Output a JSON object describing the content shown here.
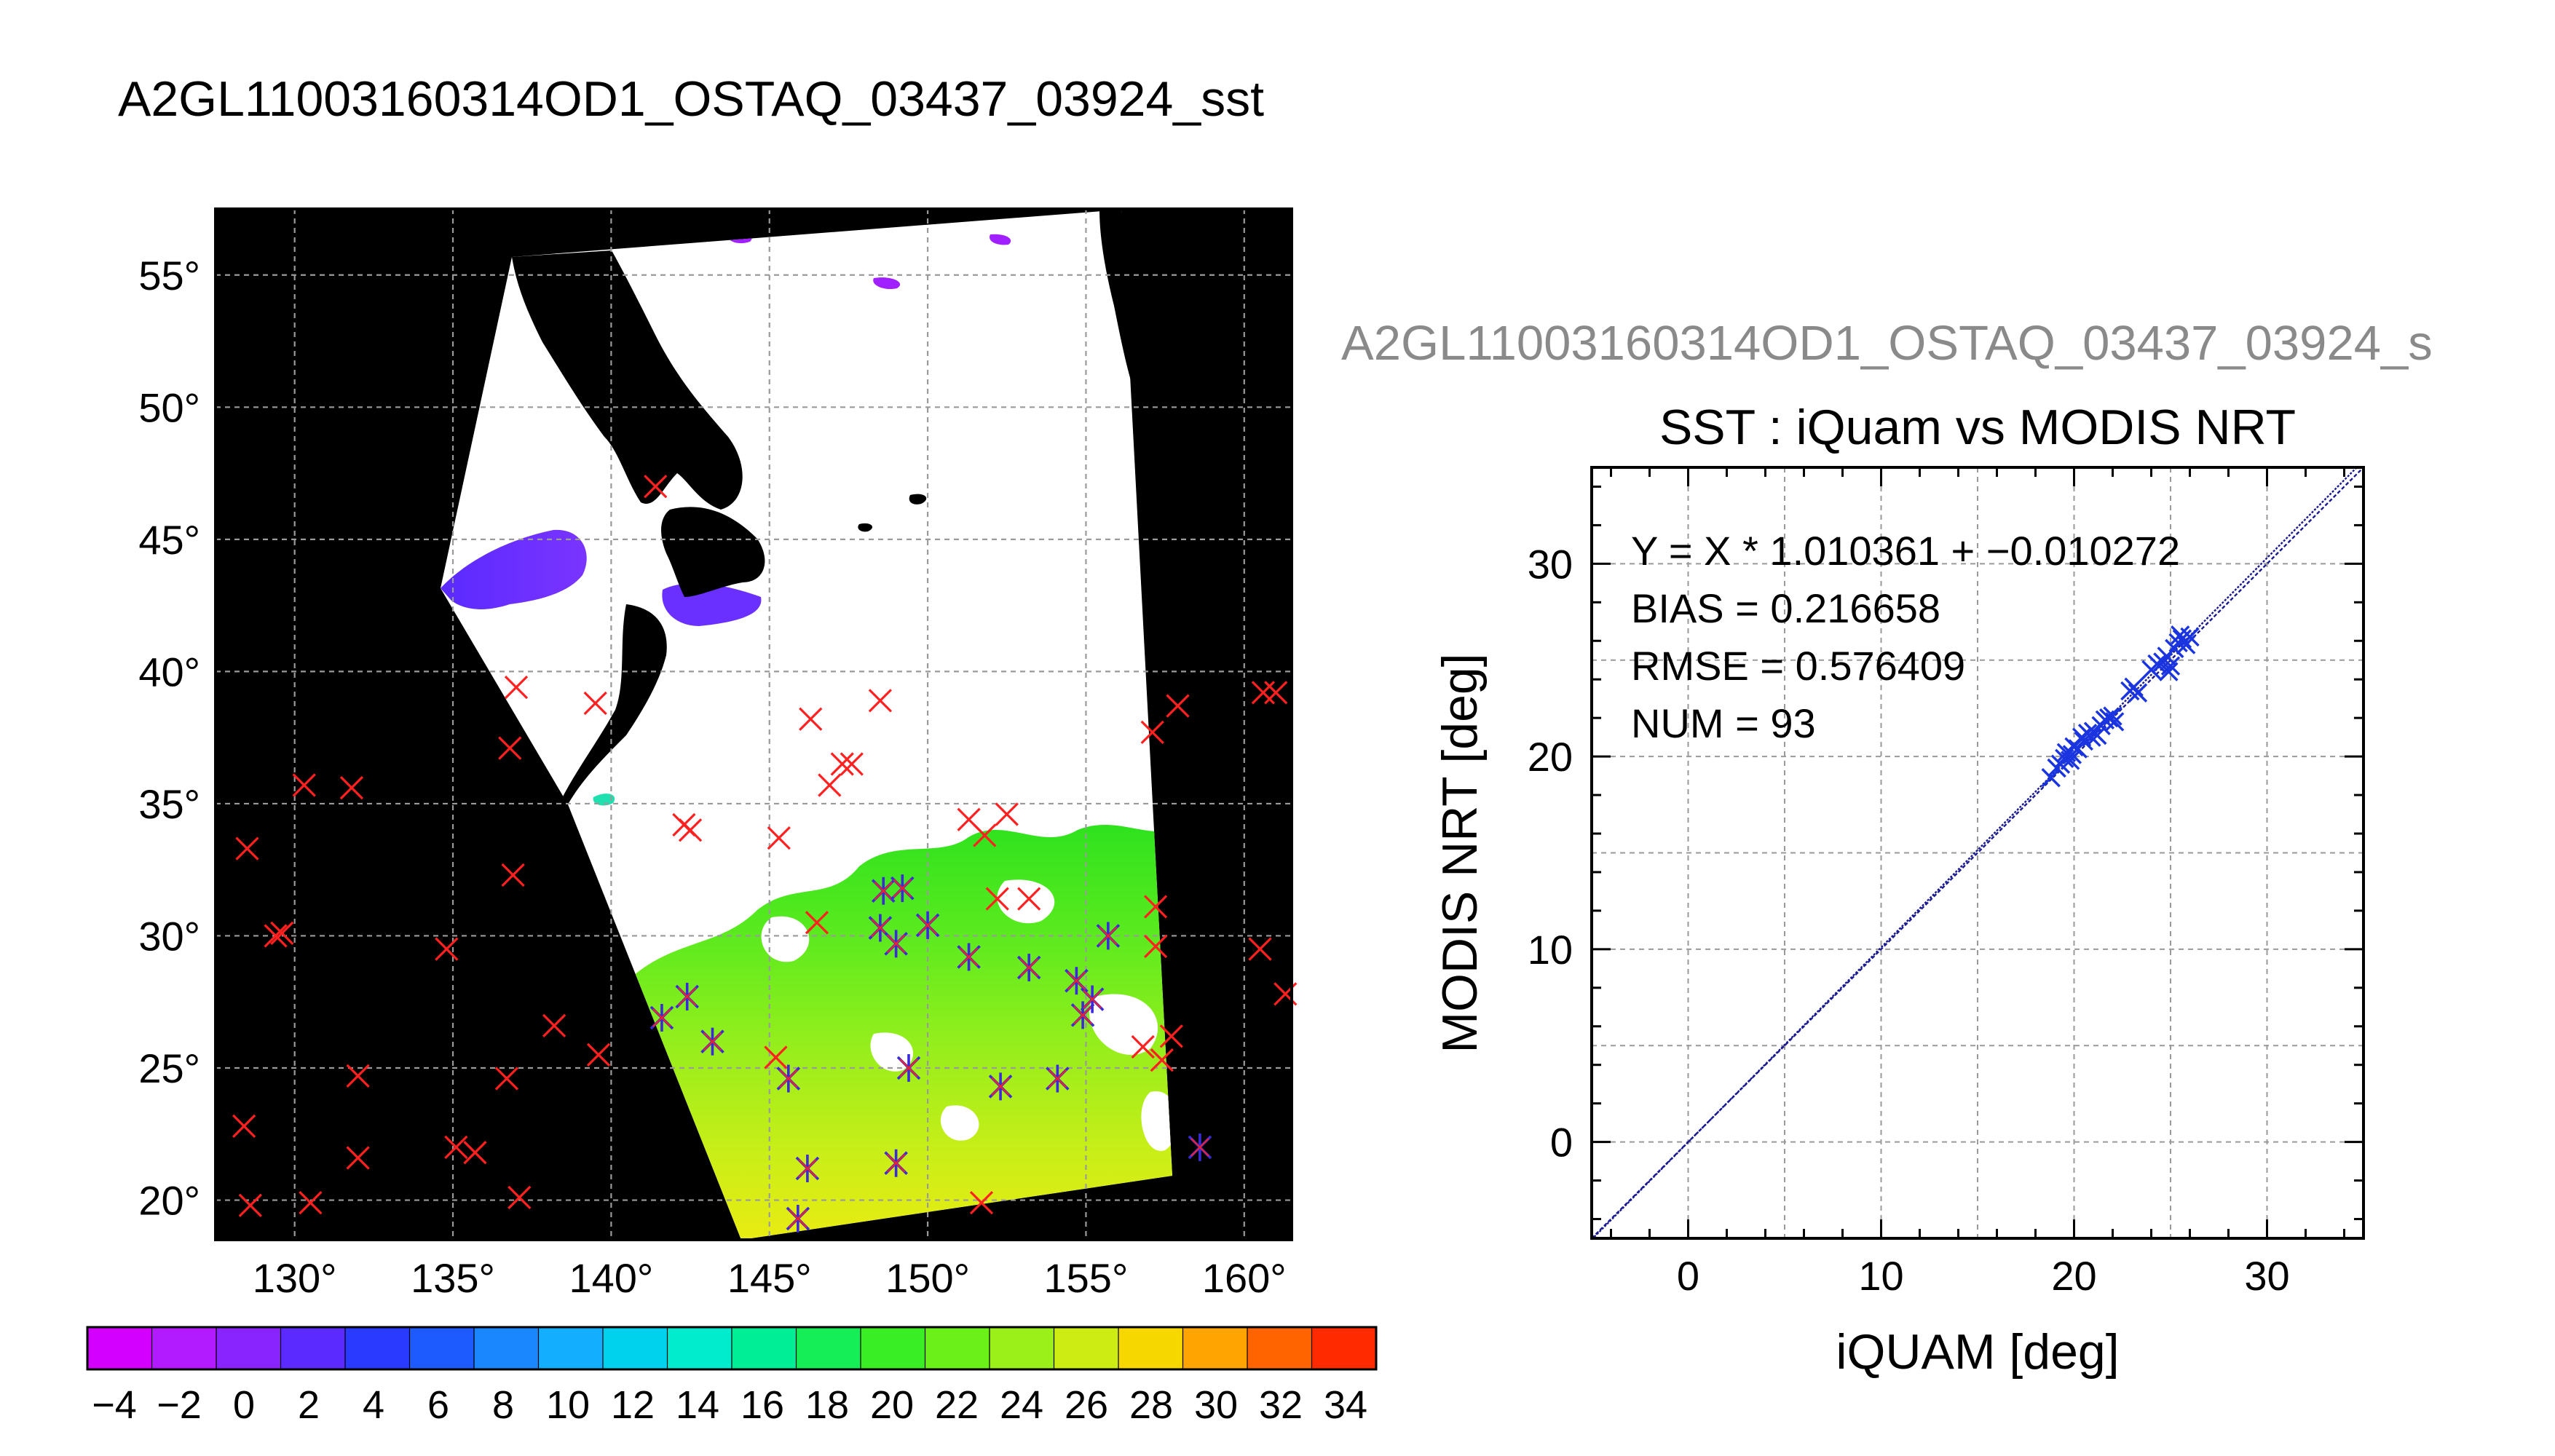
{
  "page_title": "A2GL11003160314OD1_OSTAQ_03437_03924_sst",
  "colors": {
    "background": "#ffffff",
    "map_land": "#000000",
    "swath": "#ffffff",
    "marker_all": "#ff2020",
    "marker_match": "#3a2bd8",
    "grid": "#9a9a9a",
    "scatter_points": "#1a35e0",
    "fit_line": "#1a1a90",
    "subtitle": "#8a8a8a"
  },
  "chart_data": [
    {
      "type": "map",
      "name": "sst-map",
      "lon_ticks": [
        "130°",
        "135°",
        "140°",
        "145°",
        "150°",
        "155°",
        "160°"
      ],
      "lon_values": [
        130,
        135,
        140,
        145,
        150,
        155,
        160
      ],
      "lat_ticks": [
        "20°",
        "25°",
        "30°",
        "35°",
        "40°",
        "45°",
        "50°",
        "55°"
      ],
      "lat_values": [
        20,
        25,
        30,
        35,
        40,
        45,
        50,
        55
      ],
      "lon_range": [
        127.5,
        161.5
      ],
      "lat_range": [
        18.5,
        57.5
      ],
      "grid": true,
      "iquam_points": [
        [
          128.5,
          33.3
        ],
        [
          129.4,
          30.0
        ],
        [
          129.6,
          30.1
        ],
        [
          130.3,
          35.7
        ],
        [
          131.8,
          35.6
        ],
        [
          128.4,
          22.8
        ],
        [
          128.6,
          19.8
        ],
        [
          130.5,
          19.9
        ],
        [
          132.0,
          21.6
        ],
        [
          132.0,
          24.7
        ],
        [
          134.8,
          29.5
        ],
        [
          135.1,
          22.0
        ],
        [
          135.7,
          21.8
        ],
        [
          136.7,
          24.6
        ],
        [
          137.1,
          20.1
        ],
        [
          136.9,
          32.3
        ],
        [
          136.8,
          37.1
        ],
        [
          137.0,
          39.4
        ],
        [
          138.2,
          26.6
        ],
        [
          139.6,
          25.5
        ],
        [
          139.5,
          38.8
        ],
        [
          141.4,
          47.0
        ],
        [
          142.3,
          34.2
        ],
        [
          142.5,
          34.0
        ],
        [
          145.3,
          33.7
        ],
        [
          146.3,
          38.2
        ],
        [
          146.9,
          35.7
        ],
        [
          147.3,
          36.5
        ],
        [
          147.6,
          36.5
        ],
        [
          148.5,
          38.9
        ],
        [
          146.5,
          30.5
        ],
        [
          151.3,
          34.4
        ],
        [
          151.8,
          33.8
        ],
        [
          152.5,
          34.6
        ],
        [
          152.2,
          31.4
        ],
        [
          153.2,
          31.4
        ],
        [
          157.1,
          37.7
        ],
        [
          157.9,
          38.7
        ],
        [
          157.2,
          31.1
        ],
        [
          157.2,
          29.6
        ],
        [
          157.7,
          26.2
        ],
        [
          157.4,
          25.3
        ],
        [
          156.8,
          25.8
        ],
        [
          160.6,
          39.2
        ],
        [
          161.0,
          39.2
        ],
        [
          160.5,
          29.5
        ],
        [
          161.3,
          27.8
        ],
        [
          145.2,
          25.4
        ],
        [
          151.7,
          19.9
        ]
      ],
      "match_points": [
        [
          141.6,
          26.9
        ],
        [
          142.4,
          27.7
        ],
        [
          143.2,
          26.0
        ],
        [
          145.6,
          24.6
        ],
        [
          146.2,
          21.2
        ],
        [
          145.9,
          19.3
        ],
        [
          148.5,
          30.3
        ],
        [
          148.6,
          31.7
        ],
        [
          149.2,
          31.8
        ],
        [
          149.0,
          29.7
        ],
        [
          150.0,
          30.4
        ],
        [
          149.0,
          21.4
        ],
        [
          149.4,
          25.0
        ],
        [
          151.3,
          29.2
        ],
        [
          152.3,
          24.3
        ],
        [
          153.2,
          28.8
        ],
        [
          154.1,
          24.6
        ],
        [
          154.7,
          28.3
        ],
        [
          154.9,
          27.0
        ],
        [
          155.2,
          27.6
        ],
        [
          155.7,
          30.0
        ],
        [
          158.6,
          22.0
        ]
      ],
      "colorbar": {
        "tick_labels": [
          "−4",
          "−2",
          "0",
          "2",
          "4",
          "6",
          "8",
          "10",
          "12",
          "14",
          "16",
          "18",
          "20",
          "22",
          "24",
          "26",
          "28",
          "30",
          "32",
          "34"
        ],
        "colors": [
          "#d400ff",
          "#b21aff",
          "#8a24ff",
          "#5a2aff",
          "#2a3aff",
          "#1e5bff",
          "#1a86ff",
          "#14aeff",
          "#00d2ee",
          "#00eccc",
          "#00ee96",
          "#16ee58",
          "#3aee26",
          "#6cf01a",
          "#9cf01a",
          "#cdec14",
          "#f6d800",
          "#ffa400",
          "#ff6400",
          "#ff2a00"
        ]
      }
    },
    {
      "type": "scatter",
      "name": "sst-scatter",
      "subtitle": "A2GL11003160314OD1_OSTAQ_03437_03924_s",
      "title": "SST : iQuam vs MODIS NRT",
      "xlabel": "iQUAM [deg]",
      "ylabel": "MODIS NRT [deg]",
      "xlim": [
        -5,
        35
      ],
      "ylim": [
        -5,
        35
      ],
      "major_ticks": [
        "0",
        "10",
        "20",
        "30"
      ],
      "major_values": [
        0,
        10,
        20,
        30
      ],
      "grid": true,
      "annotations": [
        "Y = X * 1.010361 + −0.010272",
        "BIAS = 0.216658",
        "RMSE = 0.576409",
        "NUM = 93"
      ],
      "fit": {
        "slope": 1.010361,
        "intercept": -0.010272
      },
      "points": [
        [
          18.8,
          18.9
        ],
        [
          19.1,
          19.4
        ],
        [
          19.3,
          19.6
        ],
        [
          19.5,
          19.9
        ],
        [
          19.6,
          20.2
        ],
        [
          19.8,
          19.8
        ],
        [
          19.9,
          20.1
        ],
        [
          20.0,
          20.5
        ],
        [
          20.2,
          20.4
        ],
        [
          20.4,
          21.0
        ],
        [
          20.5,
          20.8
        ],
        [
          20.7,
          21.2
        ],
        [
          20.9,
          21.0
        ],
        [
          21.0,
          21.3
        ],
        [
          21.2,
          21.1
        ],
        [
          21.4,
          21.6
        ],
        [
          21.6,
          21.9
        ],
        [
          21.8,
          22.0
        ],
        [
          22.0,
          22.1
        ],
        [
          22.1,
          21.8
        ],
        [
          22.9,
          23.4
        ],
        [
          23.1,
          23.6
        ],
        [
          23.3,
          23.3
        ],
        [
          24.0,
          24.5
        ],
        [
          24.3,
          24.8
        ],
        [
          24.6,
          24.9
        ],
        [
          24.8,
          25.2
        ],
        [
          25.0,
          24.7
        ],
        [
          25.2,
          25.6
        ],
        [
          25.4,
          25.9
        ],
        [
          25.6,
          26.1
        ],
        [
          25.8,
          25.8
        ],
        [
          26.0,
          26.2
        ],
        [
          25.5,
          26.3
        ],
        [
          24.9,
          24.4
        ]
      ]
    }
  ]
}
